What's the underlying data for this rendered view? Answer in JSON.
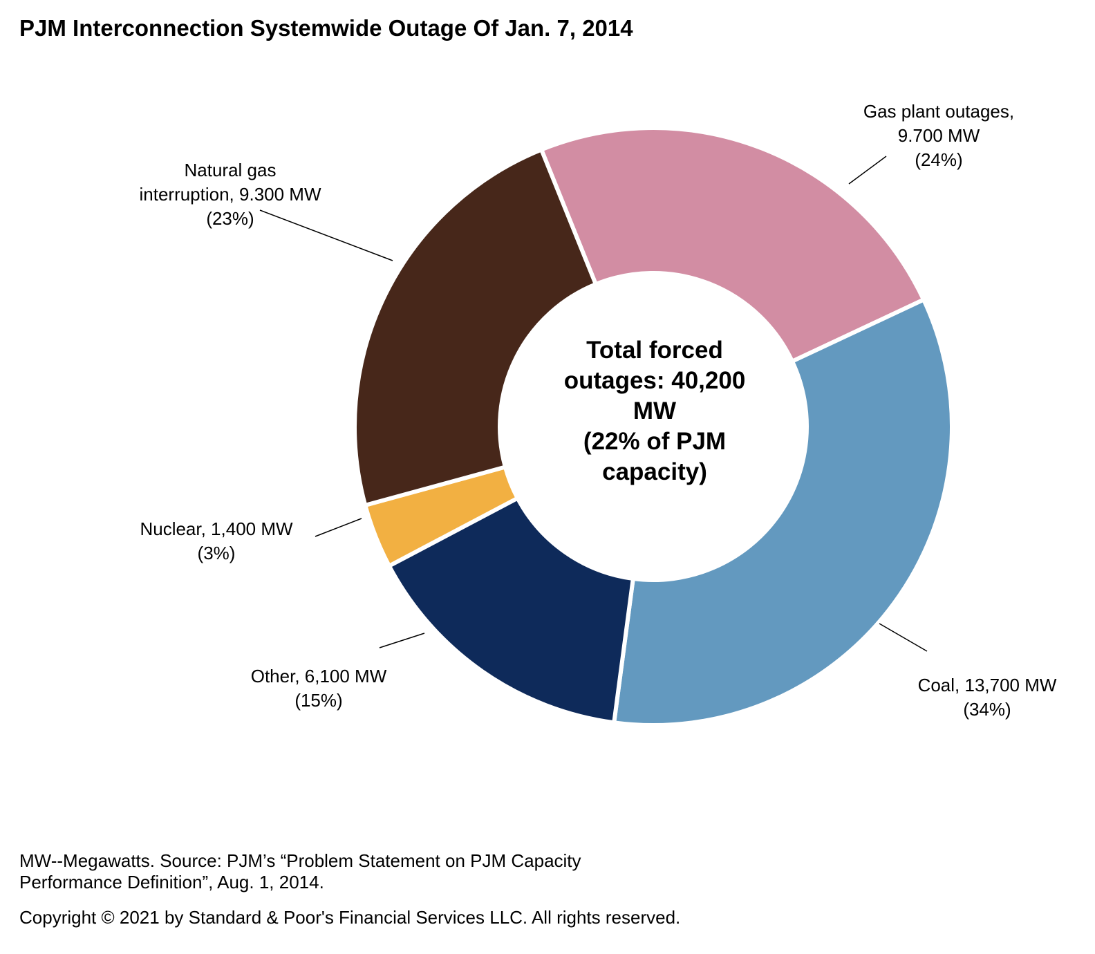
{
  "title": "PJM Interconnection Systemwide Outage Of Jan. 7, 2014",
  "chart_data": {
    "type": "pie",
    "variant": "donut",
    "title": "PJM Interconnection Systemwide Outage Of Jan. 7, 2014",
    "center_label": [
      "Total forced",
      "outages: 40,200",
      "MW",
      "(22% of PJM",
      "capacity)"
    ],
    "slices": [
      {
        "name": "Gas plant outages",
        "value": 9700,
        "percent": 24,
        "color": "#D28DA3",
        "label_lines": [
          "Gas plant outages,",
          "9.700 MW",
          "(24%)"
        ]
      },
      {
        "name": "Coal",
        "value": 13700,
        "percent": 34,
        "color": "#6399BF",
        "label_lines": [
          "Coal, 13,700 MW",
          "(34%)"
        ]
      },
      {
        "name": "Other",
        "value": 6100,
        "percent": 15,
        "color": "#0E2A5A",
        "label_lines": [
          "Other, 6,100 MW",
          "(15%)"
        ]
      },
      {
        "name": "Nuclear",
        "value": 1400,
        "percent": 3,
        "color": "#F2B042",
        "label_lines": [
          "Nuclear, 1,400 MW",
          "(3%)"
        ]
      },
      {
        "name": "Natural gas interruption",
        "value": 9300,
        "percent": 23,
        "color": "#47271A",
        "label_lines": [
          "Natural gas",
          "interruption, 9.300 MW",
          "(23%)"
        ]
      }
    ]
  },
  "footnotes": {
    "line1": "MW--Megawatts. Source: PJM’s “Problem Statement on PJM Capacity",
    "line2": "Performance Definition”, Aug. 1, 2014.",
    "copyright": "Copyright © 2021 by Standard & Poor's Financial Services LLC. All rights reserved."
  }
}
